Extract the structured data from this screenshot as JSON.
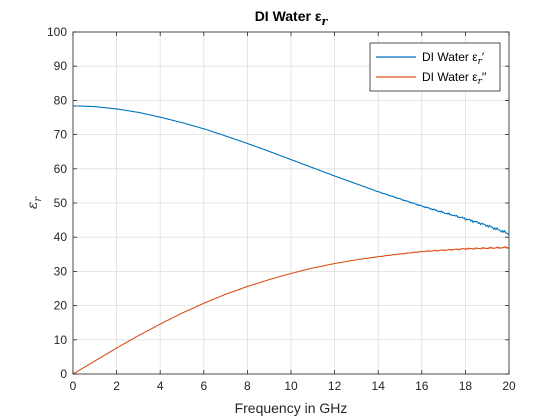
{
  "chart_data": {
    "type": "line",
    "title": "DI Water ε",
    "title_subscript": "r",
    "xlabel": "Frequency in GHz",
    "ylabel": "ε",
    "ylabel_subscript": "r",
    "xlim": [
      0,
      20
    ],
    "ylim": [
      0,
      100
    ],
    "xticks": [
      0,
      2,
      4,
      6,
      8,
      10,
      12,
      14,
      16,
      18,
      20
    ],
    "yticks": [
      0,
      10,
      20,
      30,
      40,
      50,
      60,
      70,
      80,
      90,
      100
    ],
    "grid": true,
    "legend_position": "top-right",
    "x": [
      0,
      1,
      2,
      3,
      4,
      5,
      6,
      7,
      8,
      9,
      10,
      11,
      12,
      13,
      14,
      15,
      16,
      17,
      18,
      19,
      20
    ],
    "series": [
      {
        "name": "DI Water ε",
        "name_subscript": "r",
        "name_suffix": "′",
        "color": "#0072BD",
        "values": [
          78.4,
          78.2,
          77.5,
          76.5,
          75.1,
          73.5,
          71.7,
          69.6,
          67.4,
          65.1,
          62.7,
          60.3,
          57.9,
          55.6,
          53.3,
          51.2,
          49.1,
          47.2,
          45.4,
          43.4,
          41.0
        ]
      },
      {
        "name": "DI Water ε",
        "name_subscript": "r",
        "name_suffix": "′′",
        "color": "#D95319",
        "values": [
          0.0,
          3.8,
          7.6,
          11.2,
          14.6,
          17.8,
          20.7,
          23.3,
          25.6,
          27.6,
          29.4,
          31.0,
          32.3,
          33.4,
          34.3,
          35.1,
          35.8,
          36.2,
          36.6,
          36.8,
          37.0
        ]
      }
    ]
  }
}
